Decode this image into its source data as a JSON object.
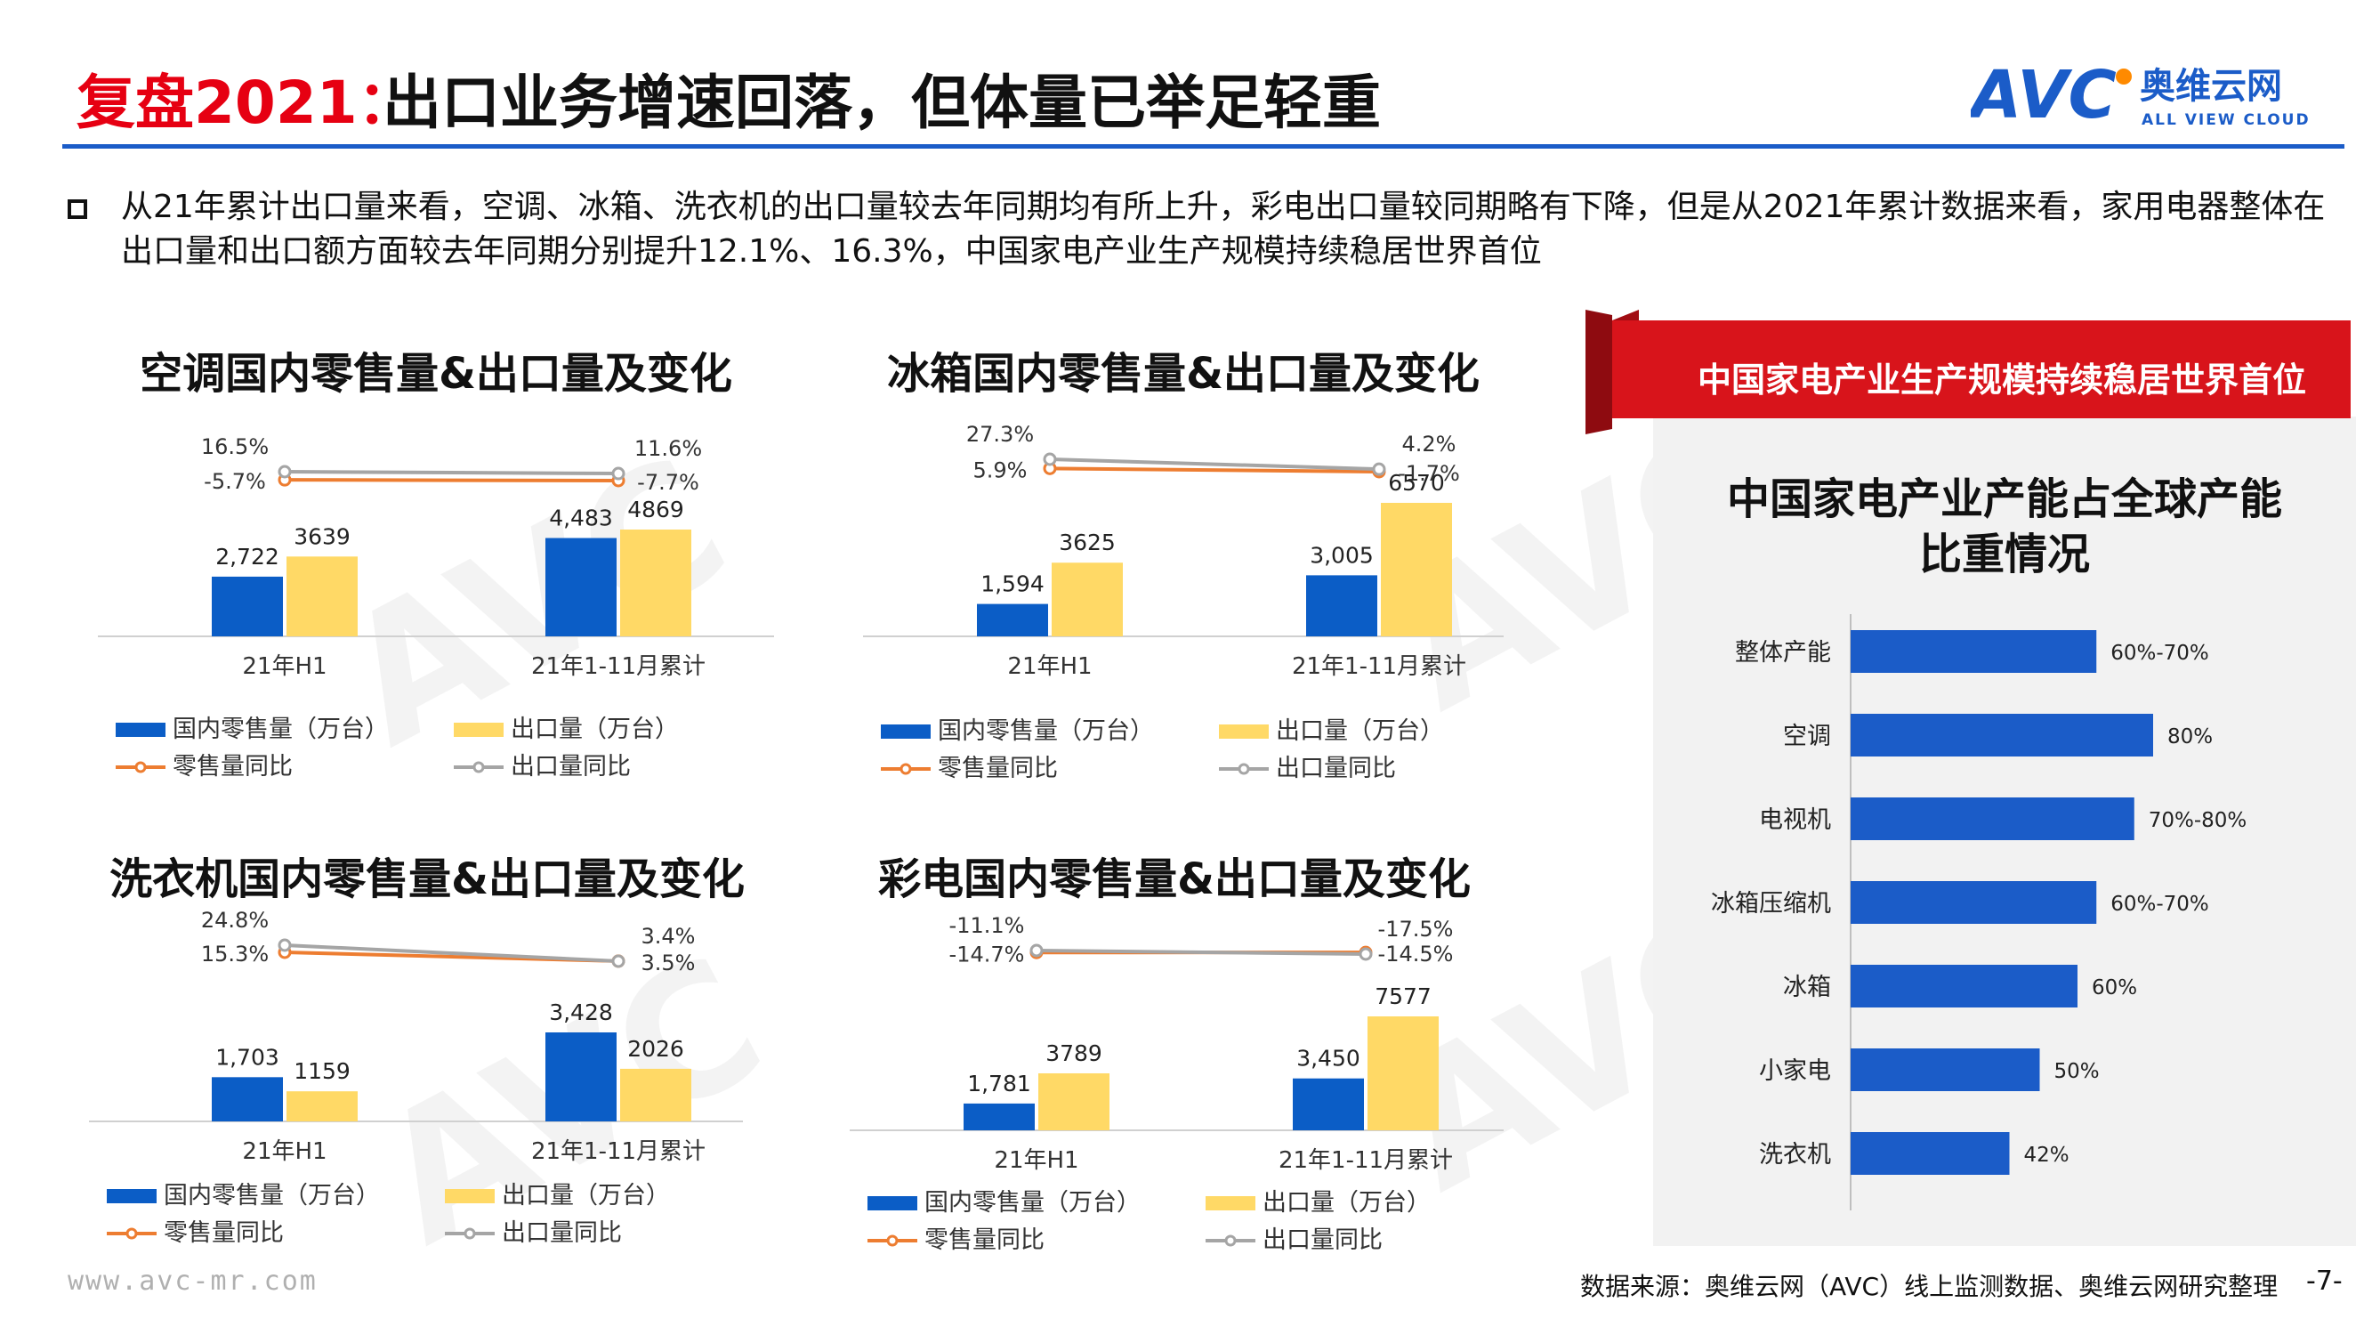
{
  "header": {
    "title_red": "复盘2021：",
    "title_main": "出口业务增速回落，但体量已举足轻重",
    "logo_brand": "AVC",
    "logo_cn": "奥维云网",
    "logo_en": "ALL VIEW CLOUD",
    "accent_color": "#1b5cc8",
    "title_red_color": "#e60012"
  },
  "bullet": {
    "text": "从21年累计出口量来看，空调、冰箱、洗衣机的出口量较去年同期均有所上升，彩电出口量较同期略有下降，但是从2021年累计数据来看，家用电器整体在出口量和出口额方面较去年同期分别提升12.1%、16.3%，中国家电产业生产规模持续稳居世界首位"
  },
  "colors": {
    "domestic_bar": "#0b5dc6",
    "export_bar": "#ffd966",
    "retail_yoy_line": "#ed7d31",
    "export_yoy_line": "#a5a5a5",
    "right_bar": "#1b5cc8",
    "banner_red": "#d8141b"
  },
  "chart_data": [
    {
      "type": "bar",
      "title": "空调国内零售量&出口量及变化",
      "categories": [
        "21年H1",
        "21年1-11月累计"
      ],
      "series": [
        {
          "name": "国内零售量（万台）",
          "kind": "bar",
          "values": [
            2722,
            4483
          ],
          "labels": [
            "2,722",
            "4,483"
          ]
        },
        {
          "name": "出口量（万台）",
          "kind": "bar",
          "values": [
            3639,
            4869
          ],
          "labels": [
            "3639",
            "4869"
          ]
        },
        {
          "name": "零售量同比",
          "kind": "line",
          "values": [
            -5.7,
            -7.7
          ],
          "labels": [
            "-5.7%",
            "-7.7%"
          ]
        },
        {
          "name": "出口量同比",
          "kind": "line",
          "values": [
            16.5,
            11.6
          ],
          "labels": [
            "16.5%",
            "11.6%"
          ]
        }
      ]
    },
    {
      "type": "bar",
      "title": "冰箱国内零售量&出口量及变化",
      "categories": [
        "21年H1",
        "21年1-11月累计"
      ],
      "series": [
        {
          "name": "国内零售量（万台）",
          "kind": "bar",
          "values": [
            1594,
            3005
          ],
          "labels": [
            "1,594",
            "3,005"
          ]
        },
        {
          "name": "出口量（万台）",
          "kind": "bar",
          "values": [
            3625,
            6570
          ],
          "labels": [
            "3625",
            "6570"
          ]
        },
        {
          "name": "零售量同比",
          "kind": "line",
          "values": [
            5.9,
            -1.7
          ],
          "labels": [
            "5.9%",
            "-1.7%"
          ]
        },
        {
          "name": "出口量同比",
          "kind": "line",
          "values": [
            27.3,
            4.2
          ],
          "labels": [
            "27.3%",
            "4.2%"
          ]
        }
      ]
    },
    {
      "type": "bar",
      "title": "洗衣机国内零售量&出口量及变化",
      "categories": [
        "21年H1",
        "21年1-11月累计"
      ],
      "series": [
        {
          "name": "国内零售量（万台）",
          "kind": "bar",
          "values": [
            1703,
            3428
          ],
          "labels": [
            "1,703",
            "3,428"
          ]
        },
        {
          "name": "出口量（万台）",
          "kind": "bar",
          "values": [
            1159,
            2026
          ],
          "labels": [
            "1159",
            "2026"
          ]
        },
        {
          "name": "零售量同比",
          "kind": "line",
          "values": [
            15.3,
            3.5
          ],
          "labels": [
            "15.3%",
            "3.5%"
          ]
        },
        {
          "name": "出口量同比",
          "kind": "line",
          "values": [
            24.8,
            3.4
          ],
          "labels": [
            "24.8%",
            "3.4%"
          ]
        }
      ]
    },
    {
      "type": "bar",
      "title": "彩电国内零售量&出口量及变化",
      "categories": [
        "21年H1",
        "21年1-11月累计"
      ],
      "series": [
        {
          "name": "国内零售量（万台）",
          "kind": "bar",
          "values": [
            1781,
            3450
          ],
          "labels": [
            "1,781",
            "3,450"
          ]
        },
        {
          "name": "出口量（万台）",
          "kind": "bar",
          "values": [
            3789,
            7577
          ],
          "labels": [
            "3789",
            "7577"
          ]
        },
        {
          "name": "零售量同比",
          "kind": "line",
          "values": [
            -14.7,
            -14.5
          ],
          "labels": [
            "-14.7%",
            "-14.5%"
          ]
        },
        {
          "name": "出口量同比",
          "kind": "line",
          "values": [
            -11.1,
            -17.5
          ],
          "labels": [
            "-11.1%",
            "-17.5%"
          ]
        }
      ]
    },
    {
      "type": "bar",
      "orientation": "horizontal",
      "title": "中国家电产业产能占全球产能比重情况",
      "categories": [
        "整体产能",
        "空调",
        "电视机",
        "冰箱压缩机",
        "冰箱",
        "小家电",
        "洗衣机"
      ],
      "values": [
        65,
        80,
        75,
        65,
        60,
        50,
        42
      ],
      "labels": [
        "60%-70%",
        "80%",
        "70%-80%",
        "60%-70%",
        "60%",
        "50%",
        "42%"
      ]
    }
  ],
  "right_panel": {
    "banner_text": "中国家电产业生产规模持续稳居世界首位",
    "title": "中国家电产业产能占全球产能比重情况"
  },
  "footer": {
    "url": "www.avc-mr.com",
    "source": "数据来源：奥维云网（AVC）线上监测数据、奥维云网研究整理",
    "page": "-7-"
  }
}
